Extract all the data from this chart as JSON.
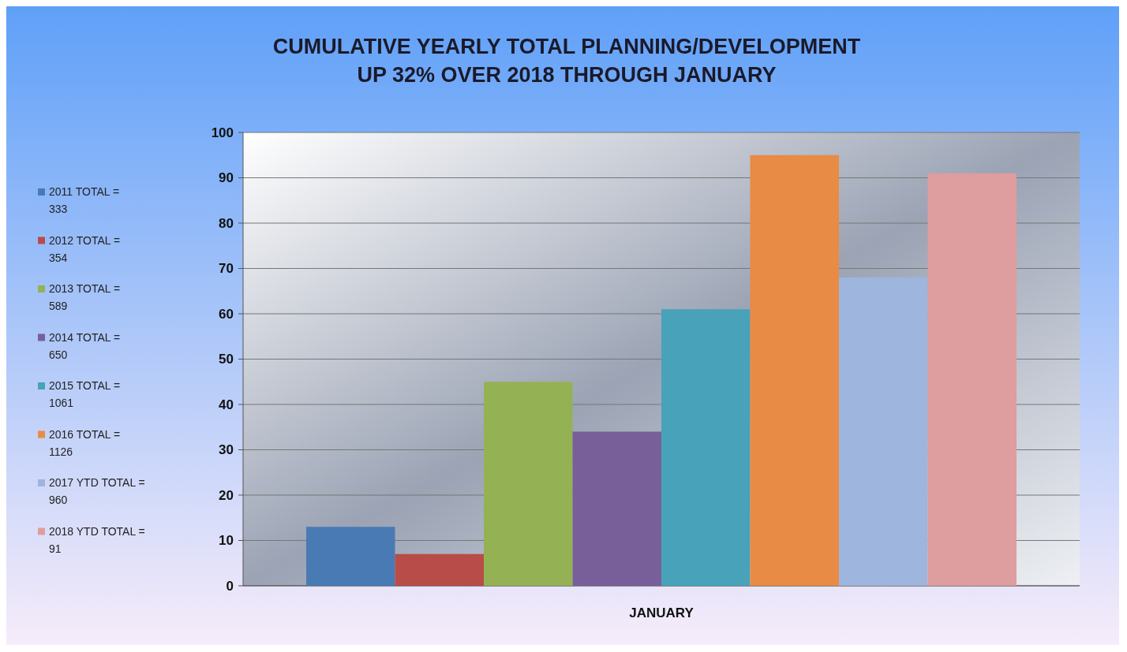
{
  "chart_data": {
    "type": "bar",
    "title": "CUMULATIVE YEARLY TOTAL PLANNING/DEVELOPMENT\nUP 32% OVER 2018 THROUGH JANUARY",
    "categories": [
      "JANUARY"
    ],
    "series": [
      {
        "name": "2011 TOTAL = 333",
        "color": "#4a7ab4",
        "values": [
          13
        ]
      },
      {
        "name": "2012 TOTAL = 354",
        "color": "#b84c48",
        "values": [
          7
        ]
      },
      {
        "name": "2013 TOTAL = 589",
        "color": "#94b254",
        "values": [
          45
        ]
      },
      {
        "name": "2014 TOTAL = 650",
        "color": "#795f9a",
        "values": [
          34
        ]
      },
      {
        "name": "2015 TOTAL = 1061",
        "color": "#48a2b9",
        "values": [
          61
        ]
      },
      {
        "name": "2016 TOTAL = 1126",
        "color": "#e88b45",
        "values": [
          95
        ]
      },
      {
        "name": "2017 YTD TOTAL = 960",
        "color": "#9eb5dd",
        "values": [
          68
        ]
      },
      {
        "name": "2018 YTD TOTAL = 91",
        "color": "#de9d9e",
        "values": [
          91
        ]
      }
    ],
    "ylim": [
      0,
      100
    ],
    "yticks": [
      0,
      10,
      20,
      30,
      40,
      50,
      60,
      70,
      80,
      90,
      100
    ],
    "grid": "y",
    "legend": "left"
  }
}
